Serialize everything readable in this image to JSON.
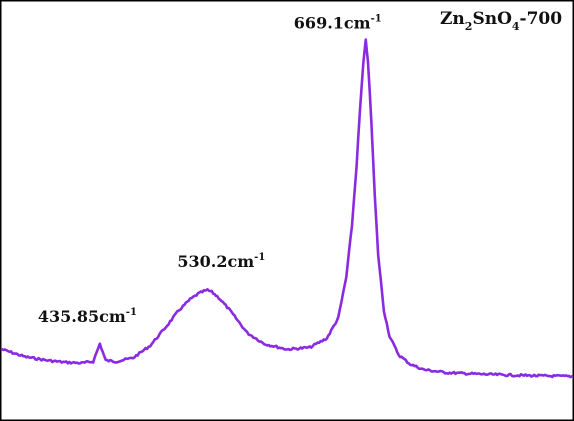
{
  "chart_data": {
    "type": "line",
    "title": "",
    "sample": {
      "base": "Zn",
      "sub1": "2",
      "mid": "SnO",
      "sub2": "4",
      "tail": "-700"
    },
    "xlabel": "",
    "ylabel": "",
    "xlim": [
      350,
      850
    ],
    "ylim": [
      0,
      1
    ],
    "grid": false,
    "line_color": "#8a2be2",
    "series": [
      {
        "x": [
          350,
          370,
          390,
          405,
          420,
          430,
          435.85,
          441,
          450,
          465,
          480,
          495,
          505,
          515,
          522,
          527,
          530.2,
          534,
          540,
          550,
          565,
          580,
          600,
          620,
          635,
          645,
          652,
          657,
          661,
          664,
          667,
          669.1,
          671,
          674,
          677,
          680,
          685,
          690,
          698,
          708,
          720,
          740,
          770,
          800,
          830,
          850
        ],
        "y": [
          0.145,
          0.125,
          0.115,
          0.11,
          0.108,
          0.112,
          0.16,
          0.115,
          0.112,
          0.122,
          0.155,
          0.21,
          0.25,
          0.28,
          0.295,
          0.302,
          0.305,
          0.3,
          0.285,
          0.25,
          0.19,
          0.16,
          0.145,
          0.15,
          0.175,
          0.23,
          0.34,
          0.48,
          0.64,
          0.79,
          0.92,
          0.98,
          0.925,
          0.76,
          0.56,
          0.4,
          0.25,
          0.18,
          0.13,
          0.105,
          0.09,
          0.082,
          0.078,
          0.075,
          0.073,
          0.072
        ]
      }
    ],
    "annotations": [
      {
        "x": 435.85,
        "y": 0.16,
        "label": "435.85cm",
        "sup": "-1"
      },
      {
        "x": 530.2,
        "y": 0.305,
        "label": "530.2cm",
        "sup": "-1"
      },
      {
        "x": 669.1,
        "y": 0.98,
        "label": "669.1cm",
        "sup": "-1"
      }
    ]
  }
}
